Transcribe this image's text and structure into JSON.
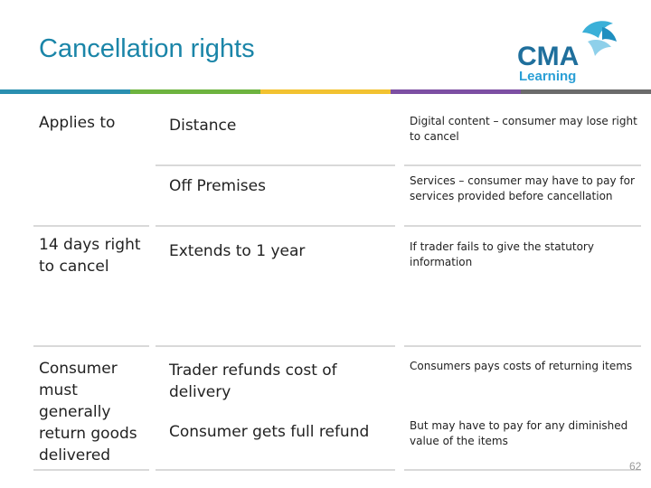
{
  "title": "Cancellation rights",
  "logo": {
    "text_main": "CMA",
    "text_sub": "Learning",
    "colors": {
      "cma": "#1f6f9c",
      "learning": "#2a9fd6",
      "bird": "#3bb0d8"
    }
  },
  "accent_colors": [
    "#2a8fb0",
    "#6db33f",
    "#f2c230",
    "#7d4fa3",
    "#6b6b6b"
  ],
  "rows": [
    {
      "label": "Applies to",
      "middle": "Distance",
      "right": "Digital content – consumer may lose right to cancel"
    },
    {
      "label": "",
      "middle": "Off Premises",
      "right": "Services – consumer may have to  pay for services provided before cancellation"
    },
    {
      "label": "14 days right to cancel",
      "middle": "Extends to 1 year",
      "right": "If trader fails to give the statutory information"
    },
    {
      "label": "Consumer must generally return goods delivered",
      "middle": "Trader refunds cost of delivery",
      "right": "Consumers pays costs of returning items"
    },
    {
      "label": "",
      "middle": "Consumer gets full refund",
      "right": "But may have to pay for any diminished value of the items"
    }
  ],
  "page_number": "62"
}
